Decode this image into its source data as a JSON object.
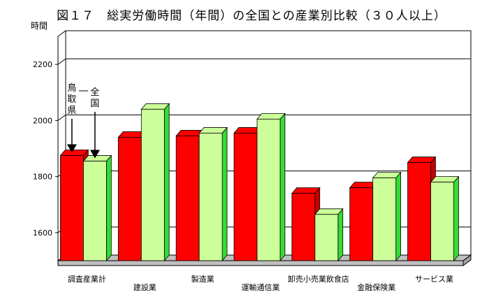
{
  "chart_data": {
    "type": "bar",
    "title": "図１７　総実労働時間（年間）の全国との産業別比較（３０人以上）",
    "ylabel": "時間",
    "ylim": [
      1500,
      2300
    ],
    "yticks": [
      1600,
      1800,
      2000,
      2200
    ],
    "grid": true,
    "categories": [
      "調査産業計",
      "建設業",
      "製造業",
      "運輸通信業",
      "卸売小売業飲食店",
      "金融保険業",
      "サービス業"
    ],
    "series": [
      {
        "name": "鳥取県",
        "color": "#ff0000",
        "values": [
          1875,
          1940,
          1945,
          1955,
          1740,
          1760,
          1850
        ]
      },
      {
        "name": "全国",
        "color": "#ccff99",
        "values": [
          1855,
          2040,
          1955,
          2005,
          1665,
          1795,
          1780
        ]
      }
    ],
    "annotations": [
      {
        "text": "鳥取県",
        "target": "調査産業計 / 鳥取県"
      },
      {
        "text": "全国",
        "target": "調査産業計 / 全国"
      }
    ]
  }
}
